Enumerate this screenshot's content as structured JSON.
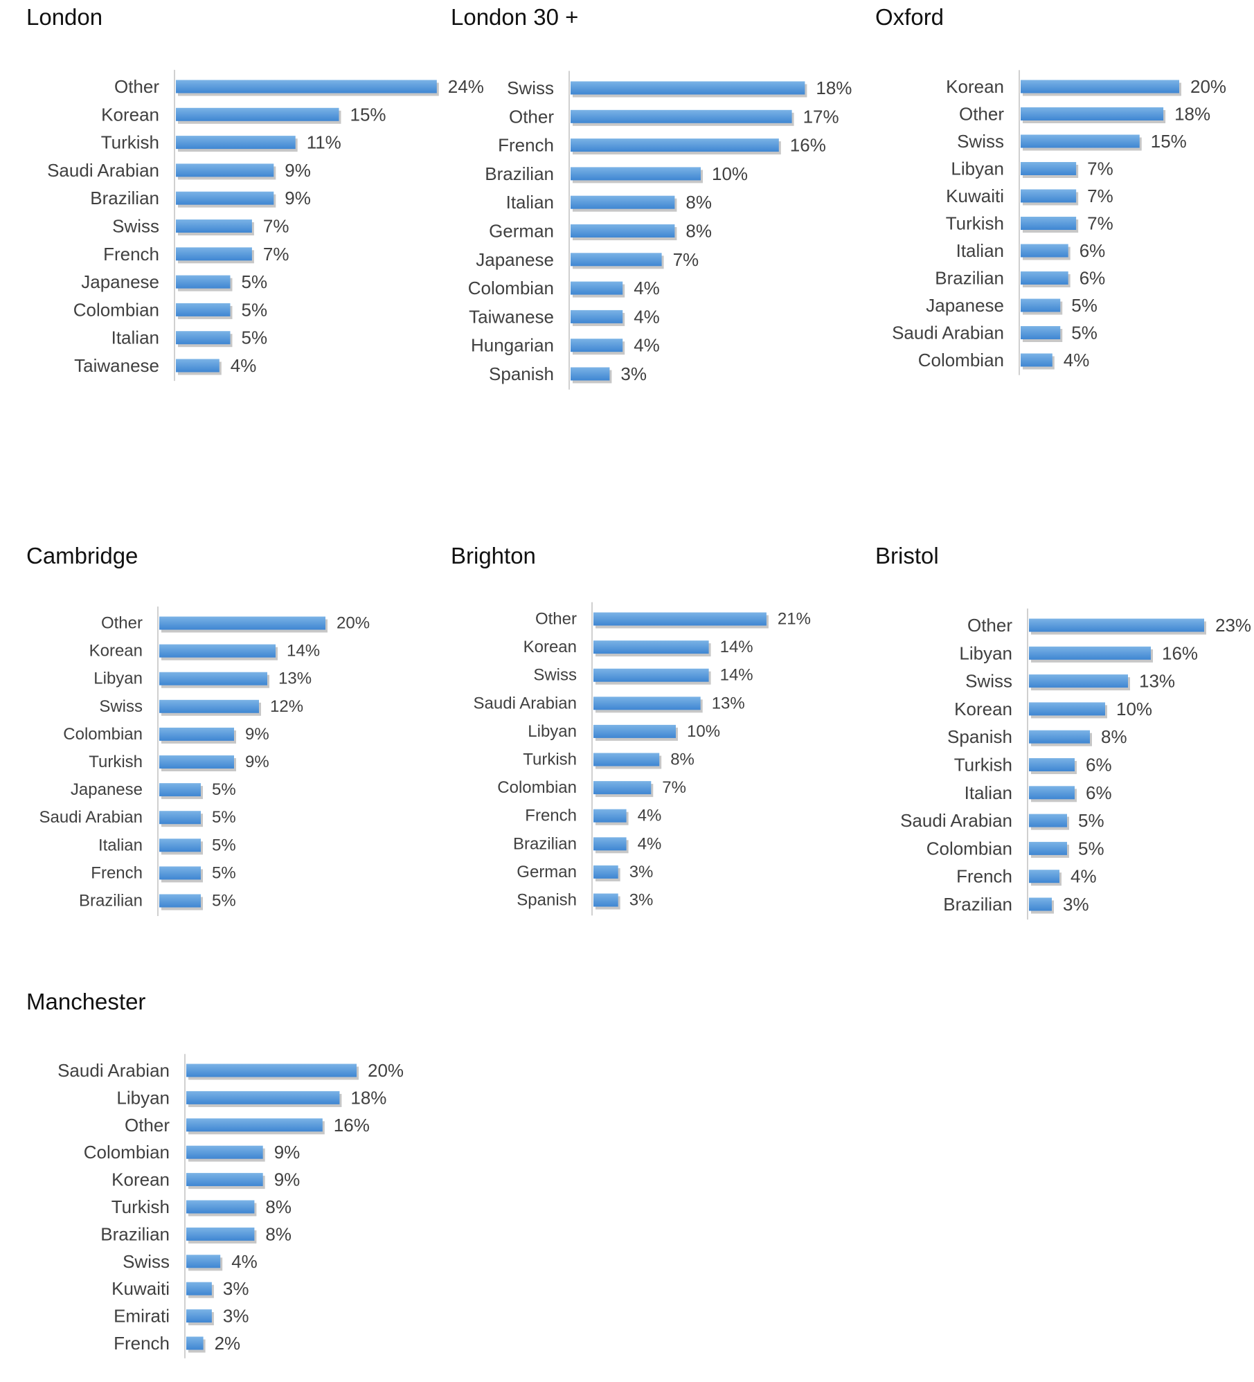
{
  "colors": {
    "bar_top": "#7bb3e6",
    "bar_bottom": "#3f86d2",
    "bar_shadow": "#c7c7c7",
    "axis": "#d0d0d0",
    "text": "#404040"
  },
  "chart_data": [
    {
      "type": "bar",
      "orientation": "horizontal",
      "title": "London",
      "categories": [
        "Other",
        "Korean",
        "Turkish",
        "Saudi Arabian",
        "Brazilian",
        "Swiss",
        "French",
        "Japanese",
        "Colombian",
        "Italian",
        "Taiwanese"
      ],
      "values": [
        24,
        15,
        11,
        9,
        9,
        7,
        7,
        5,
        5,
        5,
        4
      ],
      "labels": [
        "24%",
        "15%",
        "11%",
        "9%",
        "9%",
        "7%",
        "7%",
        "5%",
        "5%",
        "5%",
        "4%"
      ],
      "unit": "%",
      "grid": false
    },
    {
      "type": "bar",
      "orientation": "horizontal",
      "title": "London 30 +",
      "categories": [
        "Swiss",
        "Other",
        "French",
        "Brazilian",
        "Italian",
        "German",
        "Japanese",
        "Colombian",
        "Taiwanese",
        "Hungarian",
        "Spanish"
      ],
      "values": [
        18,
        17,
        16,
        10,
        8,
        8,
        7,
        4,
        4,
        4,
        3
      ],
      "labels": [
        "18%",
        "17%",
        "16%",
        "10%",
        "8%",
        "8%",
        "7%",
        "4%",
        "4%",
        "4%",
        "3%"
      ],
      "unit": "%",
      "grid": false
    },
    {
      "type": "bar",
      "orientation": "horizontal",
      "title": "Oxford",
      "categories": [
        "Korean",
        "Other",
        "Swiss",
        "Libyan",
        "Kuwaiti",
        "Turkish",
        "Italian",
        "Brazilian",
        "Japanese",
        "Saudi Arabian",
        "Colombian"
      ],
      "values": [
        20,
        18,
        15,
        7,
        7,
        7,
        6,
        6,
        5,
        5,
        4
      ],
      "labels": [
        "20%",
        "18%",
        "15%",
        "7%",
        "7%",
        "7%",
        "6%",
        "6%",
        "5%",
        "5%",
        "4%"
      ],
      "unit": "%",
      "grid": false
    },
    {
      "type": "bar",
      "orientation": "horizontal",
      "title": "Cambridge",
      "categories": [
        "Other",
        "Korean",
        "Libyan",
        "Swiss",
        "Colombian",
        "Turkish",
        "Japanese",
        "Saudi Arabian",
        "Italian",
        "French",
        "Brazilian"
      ],
      "values": [
        20,
        14,
        13,
        12,
        9,
        9,
        5,
        5,
        5,
        5,
        5
      ],
      "labels": [
        "20%",
        "14%",
        "13%",
        "12%",
        "9%",
        "9%",
        "5%",
        "5%",
        "5%",
        "5%",
        "5%"
      ],
      "unit": "%",
      "grid": false
    },
    {
      "type": "bar",
      "orientation": "horizontal",
      "title": "Brighton",
      "categories": [
        "Other",
        "Korean",
        "Swiss",
        "Saudi Arabian",
        "Libyan",
        "Turkish",
        "Colombian",
        "French",
        "Brazilian",
        "German",
        "Spanish"
      ],
      "values": [
        21,
        14,
        14,
        13,
        10,
        8,
        7,
        4,
        4,
        3,
        3
      ],
      "labels": [
        "21%",
        "14%",
        "14%",
        "13%",
        "10%",
        "8%",
        "7%",
        "4%",
        "4%",
        "3%",
        "3%"
      ],
      "unit": "%",
      "grid": false
    },
    {
      "type": "bar",
      "orientation": "horizontal",
      "title": "Bristol",
      "categories": [
        "Other",
        "Libyan",
        "Swiss",
        "Korean",
        "Spanish",
        "Turkish",
        "Italian",
        "Saudi Arabian",
        "Colombian",
        "French",
        "Brazilian"
      ],
      "values": [
        23,
        16,
        13,
        10,
        8,
        6,
        6,
        5,
        5,
        4,
        3
      ],
      "labels": [
        "23%",
        "16%",
        "13%",
        "10%",
        "8%",
        "6%",
        "6%",
        "5%",
        "5%",
        "4%",
        "3%"
      ],
      "unit": "%",
      "grid": false
    },
    {
      "type": "bar",
      "orientation": "horizontal",
      "title": "Manchester",
      "categories": [
        "Saudi Arabian",
        "Libyan",
        "Other",
        "Colombian",
        "Korean",
        "Turkish",
        "Brazilian",
        "Swiss",
        "Kuwaiti",
        "Emirati",
        "French"
      ],
      "values": [
        20,
        18,
        16,
        9,
        9,
        8,
        8,
        4,
        3,
        3,
        2
      ],
      "labels": [
        "20%",
        "18%",
        "16%",
        "9%",
        "9%",
        "8%",
        "8%",
        "4%",
        "3%",
        "3%",
        "2%"
      ],
      "unit": "%",
      "grid": false
    }
  ]
}
